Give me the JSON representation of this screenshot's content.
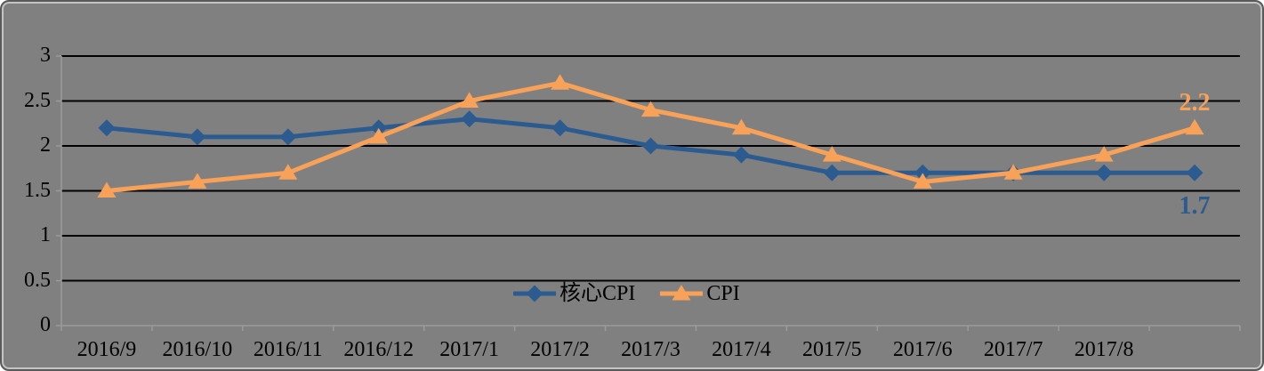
{
  "window": {
    "background_color": "#808080",
    "border_color": "#5a5a5a",
    "border_highlight_color": "#c4c4c4"
  },
  "chart_data": {
    "type": "line",
    "title": "",
    "xlabel": "",
    "ylabel": "",
    "ylim": [
      0,
      3
    ],
    "yticks": [
      3,
      2.5,
      2,
      1.5,
      1,
      0.5,
      0
    ],
    "grid": "horizontal-black-lines",
    "gridline_color": "#000000",
    "axis_color": "#9b9b9b",
    "text_color": "#000000",
    "legend_position": "inside-bottom-center",
    "x_tick_labels": [
      "2016/9",
      "2016/10",
      "2016/11",
      "2016/12",
      "2017/1",
      "2017/2",
      "2017/3",
      "2017/4",
      "2017/5",
      "2017/6",
      "2017/7",
      "2017/8"
    ],
    "num_points": 13,
    "series": [
      {
        "name": "核心CPI",
        "color": "#2C5B90",
        "marker": "diamond",
        "values": [
          2.2,
          2.1,
          2.1,
          2.2,
          2.3,
          2.2,
          2.0,
          1.9,
          1.7,
          1.7,
          1.7,
          1.7,
          1.7
        ],
        "end_label": "1.7",
        "end_label_side": "below"
      },
      {
        "name": "CPI",
        "color": "#F7A159",
        "marker": "triangle",
        "values": [
          1.5,
          1.6,
          1.7,
          2.1,
          2.5,
          2.7,
          2.4,
          2.2,
          1.9,
          1.6,
          1.7,
          1.9,
          2.2
        ],
        "end_label": "2.2",
        "end_label_side": "above"
      }
    ]
  }
}
